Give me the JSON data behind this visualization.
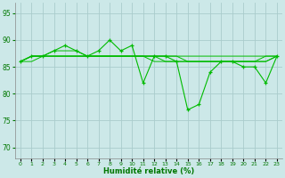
{
  "xlabel": "Humidité relative (%)",
  "bg_color": "#cce8e8",
  "grid_color": "#aacccc",
  "line_color": "#00bb00",
  "xlim": [
    -0.5,
    23.5
  ],
  "ylim": [
    68,
    97
  ],
  "yticks": [
    70,
    75,
    80,
    85,
    90,
    95
  ],
  "xtick_labels": [
    "0",
    "1",
    "2",
    "3",
    "4",
    "5",
    "6",
    "7",
    "8",
    "9",
    "10",
    "11",
    "12",
    "13",
    "14",
    "15",
    "16",
    "17",
    "18",
    "19",
    "20",
    "21",
    "22",
    "23"
  ],
  "series_main": [
    86,
    87,
    87,
    88,
    89,
    88,
    87,
    88,
    90,
    88,
    89,
    82,
    87,
    87,
    86,
    77,
    78,
    84,
    86,
    86,
    85,
    85,
    82,
    87
  ],
  "series_flat1": [
    86,
    86,
    87,
    87,
    87,
    87,
    87,
    87,
    87,
    87,
    87,
    87,
    87,
    87,
    87,
    87,
    87,
    87,
    87,
    87,
    87,
    87,
    87,
    87
  ],
  "series_flat2": [
    86,
    87,
    87,
    87,
    87,
    87,
    87,
    87,
    87,
    87,
    87,
    87,
    86,
    86,
    86,
    86,
    86,
    86,
    86,
    86,
    86,
    86,
    86,
    87
  ],
  "series_flat3": [
    86,
    87,
    87,
    87,
    87,
    87,
    87,
    87,
    87,
    87,
    87,
    87,
    87,
    87,
    87,
    86,
    86,
    86,
    86,
    86,
    86,
    86,
    87,
    87
  ],
  "series_flat4": [
    86,
    87,
    87,
    88,
    88,
    88,
    87,
    87,
    87,
    87,
    87,
    87,
    87,
    86,
    86,
    86,
    86,
    86,
    86,
    86,
    86,
    86,
    86,
    87
  ]
}
